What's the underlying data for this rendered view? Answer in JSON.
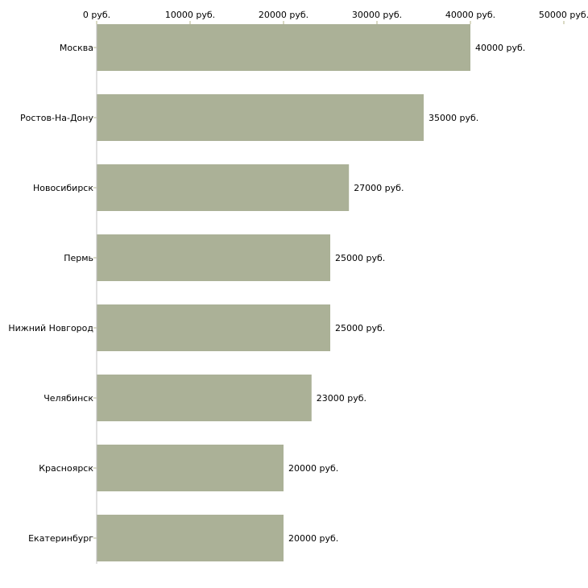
{
  "chart_data": {
    "type": "bar",
    "orientation": "horizontal",
    "title": "",
    "xlabel": "",
    "ylabel": "",
    "categories": [
      "Москва",
      "Ростов-На-Дону",
      "Новосибирск",
      "Пермь",
      "Нижний Новгород",
      "Челябинск",
      "Красноярск",
      "Екатеринбург"
    ],
    "values": [
      40000,
      35000,
      27000,
      25000,
      25000,
      23000,
      20000,
      20000
    ],
    "value_labels": [
      "40000 руб.",
      "35000 руб.",
      "27000 руб.",
      "25000 руб.",
      "25000 руб.",
      "23000 руб.",
      "20000 руб.",
      "20000 руб."
    ],
    "xlim": [
      0,
      50000
    ],
    "x_ticks": [
      0,
      10000,
      20000,
      30000,
      40000,
      50000
    ],
    "x_tick_labels": [
      "0 руб.",
      "10000 руб.",
      "20000 руб.",
      "30000 руб.",
      "40000 руб.",
      "50000 руб."
    ],
    "x_axis_position": "top",
    "grid": false,
    "bar_color": "#abb197",
    "axis_color": "#c0c0c0",
    "tick_color": "#b5b58a"
  }
}
